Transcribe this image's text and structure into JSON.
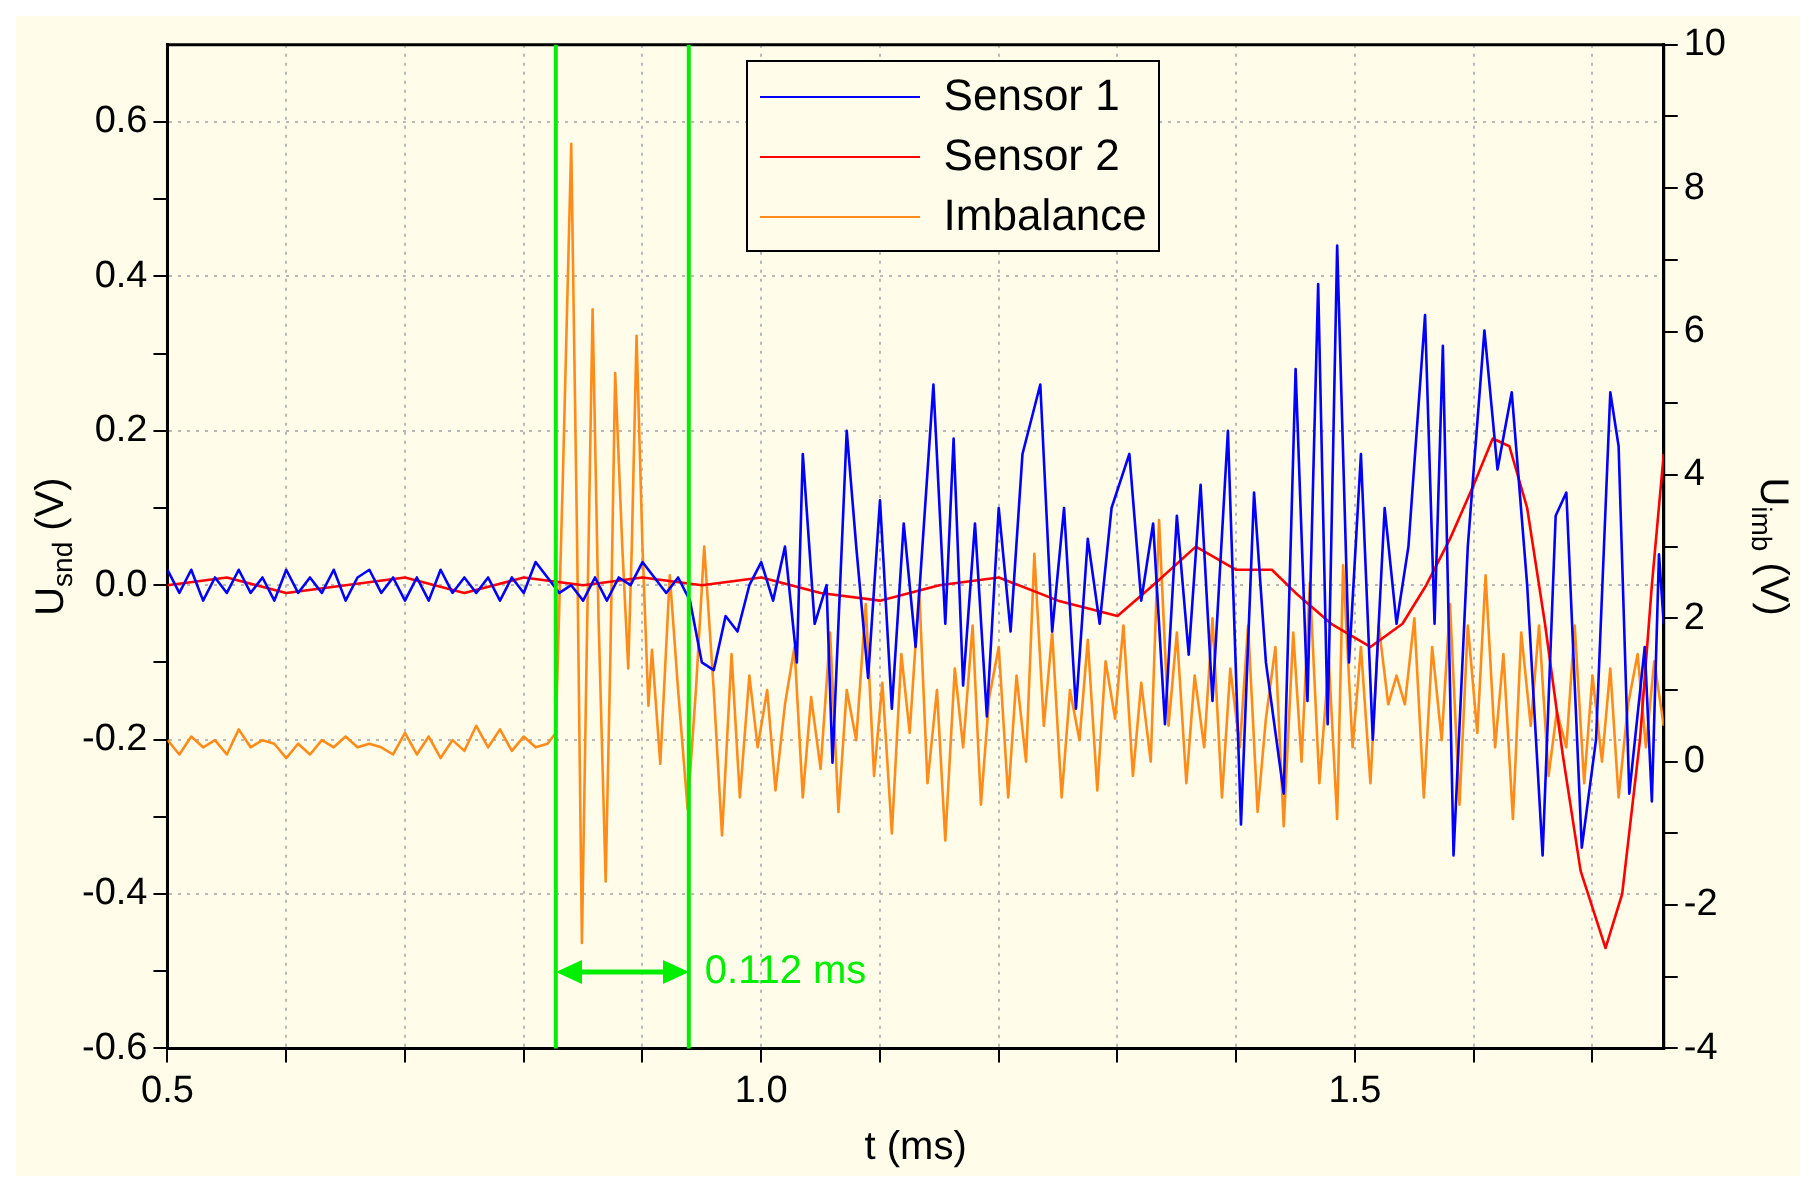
{
  "chart_data": {
    "type": "line",
    "xlabel": "t (ms)",
    "ylabel": "U$_{snd}$ (V)",
    "y2label": "U$_{imb}$ (V)",
    "xlim": [
      0.5,
      1.76
    ],
    "ylim": [
      -0.6,
      0.7
    ],
    "y2lim": [
      -4,
      10
    ],
    "xticks": [
      {
        "value": 0.5,
        "label": "0.5"
      },
      {
        "value": 0.6,
        "label": null
      },
      {
        "value": 0.7,
        "label": null
      },
      {
        "value": 0.8,
        "label": null
      },
      {
        "value": 0.9,
        "label": null
      },
      {
        "value": 1,
        "label": "1.0"
      },
      {
        "value": 1.1,
        "label": null
      },
      {
        "value": 1.2,
        "label": null
      },
      {
        "value": 1.3,
        "label": null
      },
      {
        "value": 1.4,
        "label": null
      },
      {
        "value": 1.5,
        "label": "1.5"
      },
      {
        "value": 1.6,
        "label": null
      },
      {
        "value": 1.7,
        "label": null
      }
    ],
    "yticks": [
      -0.6,
      {
        "value": -0.5,
        "label": null
      },
      -0.4,
      {
        "value": -0.3,
        "label": null
      },
      -0.2,
      {
        "value": -0.1,
        "label": null
      },
      {
        "value": 0,
        "label": "0.0"
      },
      {
        "value": 0.1,
        "label": null
      },
      0.2,
      {
        "value": 0.3,
        "label": null
      },
      0.4,
      {
        "value": 0.5,
        "label": null
      },
      0.6
    ],
    "y2ticks": [
      -4,
      {
        "value": -3,
        "label": null
      },
      -2,
      {
        "value": -1,
        "label": null
      },
      0,
      {
        "value": 1,
        "label": null
      },
      2,
      {
        "value": 3,
        "label": null
      },
      4,
      {
        "value": 5,
        "label": null
      },
      6,
      {
        "value": 7,
        "label": null
      },
      8,
      {
        "value": 9,
        "label": null
      },
      10
    ],
    "grid": true,
    "legend": "top",
    "ref_lines": [
      {
        "axis": "x",
        "value": 0.827,
        "color": "#00ee00"
      },
      {
        "axis": "x",
        "value": 0.939,
        "color": "#00ee00"
      }
    ],
    "annotations": [
      "0.112 ms"
    ],
    "series": [
      {
        "name": "Sensor 1",
        "color": "#0000ff",
        "x": [
          0.5,
          0.51,
          0.52,
          0.53,
          0.54,
          0.55,
          0.56,
          0.57,
          0.58,
          0.59,
          0.6,
          0.61,
          0.62,
          0.63,
          0.64,
          0.65,
          0.66,
          0.67,
          0.68,
          0.69,
          0.7,
          0.71,
          0.72,
          0.73,
          0.74,
          0.75,
          0.76,
          0.77,
          0.78,
          0.79,
          0.8,
          0.81,
          0.82,
          0.83,
          0.84,
          0.85,
          0.86,
          0.87,
          0.88,
          0.89,
          0.9,
          0.91,
          0.92,
          0.93,
          0.94,
          0.95,
          0.96,
          0.97,
          0.98,
          0.99,
          1.0,
          1.01,
          1.02,
          1.03,
          1.035,
          1.045,
          1.055,
          1.06,
          1.072,
          1.08,
          1.09,
          1.1,
          1.11,
          1.12,
          1.13,
          1.145,
          1.155,
          1.162,
          1.17,
          1.18,
          1.19,
          1.2,
          1.21,
          1.22,
          1.235,
          1.245,
          1.255,
          1.265,
          1.275,
          1.285,
          1.295,
          1.31,
          1.32,
          1.33,
          1.34,
          1.35,
          1.36,
          1.37,
          1.38,
          1.393,
          1.404,
          1.415,
          1.425,
          1.44,
          1.45,
          1.46,
          1.469,
          1.477,
          1.485,
          1.495,
          1.505,
          1.515,
          1.525,
          1.535,
          1.545,
          1.559,
          1.567,
          1.574,
          1.583,
          1.595,
          1.609,
          1.62,
          1.632,
          1.645,
          1.658,
          1.669,
          1.678,
          1.691,
          1.703,
          1.715,
          1.722,
          1.731,
          1.744,
          1.75,
          1.756,
          1.76
        ],
        "values": [
          0.02,
          -0.01,
          0.02,
          -0.02,
          0.01,
          -0.01,
          0.02,
          -0.01,
          0.01,
          -0.02,
          0.02,
          -0.01,
          0.01,
          -0.01,
          0.02,
          -0.02,
          0.01,
          0.02,
          -0.01,
          0.01,
          -0.02,
          0.01,
          -0.02,
          0.02,
          -0.01,
          0.01,
          -0.01,
          0.01,
          -0.02,
          0.01,
          -0.01,
          0.03,
          0.01,
          -0.01,
          0.0,
          -0.02,
          0.01,
          -0.02,
          0.01,
          0.0,
          0.03,
          0.01,
          -0.01,
          0.01,
          -0.02,
          -0.1,
          -0.11,
          -0.04,
          -0.06,
          0.0,
          0.03,
          -0.02,
          0.05,
          -0.1,
          0.17,
          -0.05,
          0.0,
          -0.23,
          0.2,
          0.05,
          -0.12,
          0.11,
          -0.16,
          0.08,
          -0.08,
          0.26,
          -0.05,
          0.19,
          -0.13,
          0.08,
          -0.17,
          0.1,
          -0.06,
          0.17,
          0.26,
          -0.06,
          0.1,
          -0.16,
          0.06,
          -0.05,
          0.1,
          0.17,
          -0.02,
          0.08,
          -0.18,
          0.09,
          -0.09,
          0.13,
          -0.15,
          0.2,
          -0.31,
          0.12,
          -0.1,
          -0.27,
          0.28,
          -0.15,
          0.39,
          -0.18,
          0.44,
          -0.1,
          0.17,
          -0.2,
          0.1,
          -0.05,
          0.05,
          0.35,
          -0.05,
          0.31,
          -0.35,
          0.05,
          0.33,
          0.15,
          0.25,
          0.0,
          -0.35,
          0.09,
          0.12,
          -0.34,
          -0.2,
          0.25,
          0.18,
          -0.27,
          -0.08,
          -0.28,
          0.04,
          -0.05
        ]
      },
      {
        "name": "Sensor 2",
        "color": "#ff0000",
        "x": [
          0.5,
          0.55,
          0.6,
          0.65,
          0.7,
          0.75,
          0.8,
          0.85,
          0.9,
          0.95,
          1.0,
          1.05,
          1.1,
          1.15,
          1.2,
          1.25,
          1.3,
          1.33,
          1.366,
          1.4,
          1.43,
          1.45,
          1.48,
          1.513,
          1.54,
          1.56,
          1.58,
          1.6,
          1.616,
          1.63,
          1.645,
          1.66,
          1.675,
          1.69,
          1.711,
          1.725,
          1.74,
          1.75,
          1.76
        ],
        "values": [
          0.0,
          0.01,
          -0.01,
          0.0,
          0.01,
          -0.01,
          0.01,
          0.0,
          0.01,
          0.0,
          0.01,
          -0.01,
          -0.02,
          0.0,
          0.01,
          -0.02,
          -0.04,
          0.0,
          0.05,
          0.02,
          0.02,
          -0.01,
          -0.05,
          -0.08,
          -0.05,
          0.0,
          0.06,
          0.13,
          0.19,
          0.18,
          0.1,
          -0.05,
          -0.22,
          -0.37,
          -0.47,
          -0.4,
          -0.2,
          0.0,
          0.17
        ]
      },
      {
        "name": "Imbalance",
        "color": "#ff8c1a",
        "axis": "y2",
        "x": [
          0.5,
          0.51,
          0.52,
          0.53,
          0.54,
          0.55,
          0.56,
          0.57,
          0.58,
          0.59,
          0.6,
          0.61,
          0.62,
          0.63,
          0.64,
          0.65,
          0.66,
          0.67,
          0.68,
          0.69,
          0.7,
          0.71,
          0.72,
          0.73,
          0.74,
          0.75,
          0.76,
          0.77,
          0.78,
          0.79,
          0.8,
          0.81,
          0.82,
          0.827,
          0.833,
          0.84,
          0.845,
          0.849,
          0.853,
          0.858,
          0.863,
          0.869,
          0.873,
          0.877,
          0.883,
          0.888,
          0.891,
          0.895,
          0.9,
          0.905,
          0.908,
          0.915,
          0.923,
          0.93,
          0.938,
          0.945,
          0.952,
          0.96,
          0.967,
          0.975,
          0.982,
          0.99,
          0.997,
          1.005,
          1.012,
          1.02,
          1.028,
          1.035,
          1.042,
          1.05,
          1.058,
          1.065,
          1.072,
          1.08,
          1.088,
          1.095,
          1.102,
          1.11,
          1.118,
          1.125,
          1.133,
          1.14,
          1.148,
          1.155,
          1.163,
          1.17,
          1.178,
          1.185,
          1.192,
          1.2,
          1.208,
          1.215,
          1.223,
          1.23,
          1.238,
          1.245,
          1.253,
          1.26,
          1.268,
          1.275,
          1.283,
          1.29,
          1.298,
          1.305,
          1.313,
          1.32,
          1.328,
          1.335,
          1.343,
          1.35,
          1.358,
          1.365,
          1.373,
          1.38,
          1.388,
          1.395,
          1.403,
          1.41,
          1.418,
          1.425,
          1.433,
          1.44,
          1.448,
          1.455,
          1.462,
          1.47,
          1.478,
          1.485,
          1.49,
          1.498,
          1.505,
          1.513,
          1.52,
          1.528,
          1.535,
          1.542,
          1.55,
          1.558,
          1.565,
          1.573,
          1.58,
          1.588,
          1.595,
          1.603,
          1.61,
          1.618,
          1.625,
          1.633,
          1.64,
          1.648,
          1.655,
          1.663,
          1.67,
          1.678,
          1.685,
          1.693,
          1.7,
          1.708,
          1.715,
          1.722,
          1.73,
          1.738,
          1.745,
          1.752,
          1.76
        ],
        "values": [
          0.3,
          0.1,
          0.35,
          0.2,
          0.3,
          0.1,
          0.45,
          0.2,
          0.3,
          0.25,
          0.05,
          0.25,
          0.1,
          0.3,
          0.2,
          0.35,
          0.2,
          0.25,
          0.2,
          0.1,
          0.4,
          0.1,
          0.35,
          0.05,
          0.3,
          0.15,
          0.5,
          0.2,
          0.45,
          0.15,
          0.35,
          0.2,
          0.25,
          0.4,
          4.0,
          8.62,
          3.0,
          -2.53,
          1.5,
          6.31,
          2.0,
          -1.67,
          1.5,
          5.42,
          3.0,
          1.3,
          3.0,
          5.94,
          3.0,
          0.78,
          1.56,
          -0.03,
          2.6,
          1.0,
          -0.66,
          1.0,
          3.0,
          1.0,
          -1.03,
          1.5,
          -0.5,
          1.2,
          0.2,
          1.0,
          -0.4,
          0.8,
          1.6,
          -0.5,
          0.9,
          -0.1,
          1.8,
          -0.7,
          1.0,
          0.3,
          2.2,
          -0.2,
          1.1,
          -1.0,
          1.5,
          0.4,
          2.4,
          -0.3,
          1.0,
          -1.1,
          1.3,
          0.2,
          1.9,
          -0.6,
          0.9,
          1.6,
          -0.5,
          1.2,
          0.0,
          2.9,
          0.5,
          1.8,
          -0.5,
          1.0,
          0.3,
          1.7,
          -0.4,
          1.4,
          0.6,
          1.9,
          -0.2,
          1.1,
          0.0,
          3.37,
          0.5,
          1.8,
          -0.3,
          1.2,
          0.2,
          2.0,
          -0.5,
          1.3,
          0.2,
          1.9,
          -0.7,
          0.6,
          1.6,
          -0.9,
          1.8,
          0.0,
          2.5,
          -0.3,
          1.4,
          -0.8,
          2.74,
          0.2,
          1.6,
          -0.3,
          1.9,
          0.8,
          1.2,
          0.8,
          2.0,
          -0.5,
          1.6,
          0.3,
          2.2,
          -0.6,
          1.9,
          0.4,
          2.6,
          0.2,
          1.5,
          -0.8,
          1.8,
          0.5,
          1.9,
          -0.2,
          0.7,
          0.2,
          1.9,
          -0.3,
          1.2,
          0.0,
          1.3,
          -0.5,
          0.8,
          1.5,
          0.2,
          1.4,
          0.5
        ]
      }
    ]
  }
}
